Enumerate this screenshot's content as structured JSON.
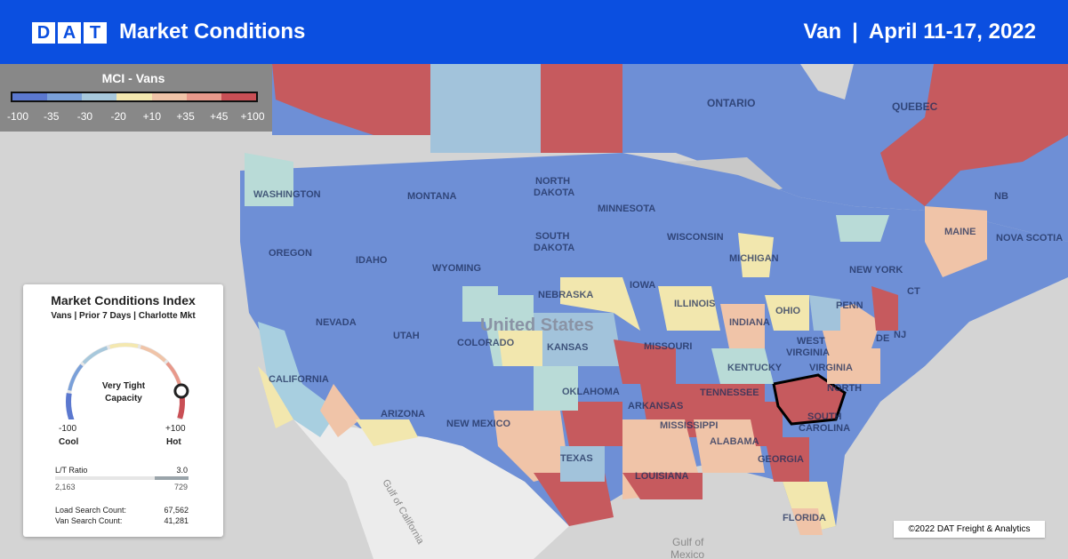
{
  "header": {
    "logo_letters": [
      "D",
      "A",
      "T"
    ],
    "title": "Market Conditions",
    "equipment": "Van",
    "separator": "|",
    "date_range": "April 11-17, 2022"
  },
  "legend": {
    "title": "MCI - Vans",
    "ticks": [
      "-100",
      "-35",
      "-30",
      "-20",
      "+10",
      "+35",
      "+45",
      "+100"
    ],
    "colors": [
      "#5b78cf",
      "#7aa0d9",
      "#a7c8dc",
      "#f4e8b0",
      "#f0c4a8",
      "#e8998b",
      "#c94f55"
    ]
  },
  "card": {
    "title": "Market Conditions Index",
    "subtitle": "Vans | Prior 7 Days | Charlotte Mkt",
    "status_line1": "Very Tight",
    "status_line2": "Capacity",
    "min_value": "-100",
    "max_value": "+100",
    "min_label": "Cool",
    "max_label": "Hot",
    "gauge_level": 0.86,
    "lt_label": "L/T Ratio",
    "lt_value": "3.0",
    "lt_loads": "2,163",
    "lt_trucks": "729",
    "load_search_label": "Load Search Count:",
    "load_search_value": "67,562",
    "van_search_label": "Van Search Count:",
    "van_search_value": "41,281"
  },
  "map_labels": {
    "ontario": "ONTARIO",
    "quebec": "QUEBEC",
    "washington": "WASHINGTON",
    "oregon": "OREGON",
    "idaho": "IDAHO",
    "montana": "MONTANA",
    "wyoming": "WYOMING",
    "nevada": "NEVADA",
    "utah": "UTAH",
    "california": "CALIFORNIA",
    "arizona": "ARIZONA",
    "colorado": "COLORADO",
    "new_mexico": "NEW MEXICO",
    "north_dakota_1": "NORTH",
    "north_dakota_2": "DAKOTA",
    "south_dakota_1": "SOUTH",
    "south_dakota_2": "DAKOTA",
    "nebraska": "NEBRASKA",
    "kansas": "KANSAS",
    "oklahoma": "OKLAHOMA",
    "texas": "TEXAS",
    "minnesota": "MINNESOTA",
    "iowa": "IOWA",
    "missouri": "MISSOURI",
    "arkansas": "ARKANSAS",
    "louisiana": "LOUISIANA",
    "wisconsin": "WISCONSIN",
    "illinois": "ILLINOIS",
    "michigan": "MICHIGAN",
    "indiana": "INDIANA",
    "ohio": "OHIO",
    "kentucky": "KENTUCKY",
    "tennessee": "TENNESSEE",
    "mississippi": "MISSISSIPPI",
    "alabama": "ALABAMA",
    "georgia": "GEORGIA",
    "florida": "FLORIDA",
    "south_carolina_1": "SOUTH",
    "south_carolina_2": "CAROLINA",
    "north_carolina": "NORTH",
    "west_virginia_1": "WEST",
    "west_virginia_2": "VIRGINIA",
    "virginia": "VIRGINIA",
    "penn": "PENN",
    "new_york": "NEW YORK",
    "nj": "NJ",
    "de": "DE",
    "ct": "CT",
    "maine": "MAINE",
    "nova_scotia": "NOVA SCOTIA",
    "nb": "NB",
    "united_states": "United States",
    "gulf_of_california": "Gulf of California",
    "gulf_of_mexico_1": "Gulf of",
    "gulf_of_mexico_2": "Mexico"
  },
  "copyright": "©2022 DAT Freight & Analytics"
}
